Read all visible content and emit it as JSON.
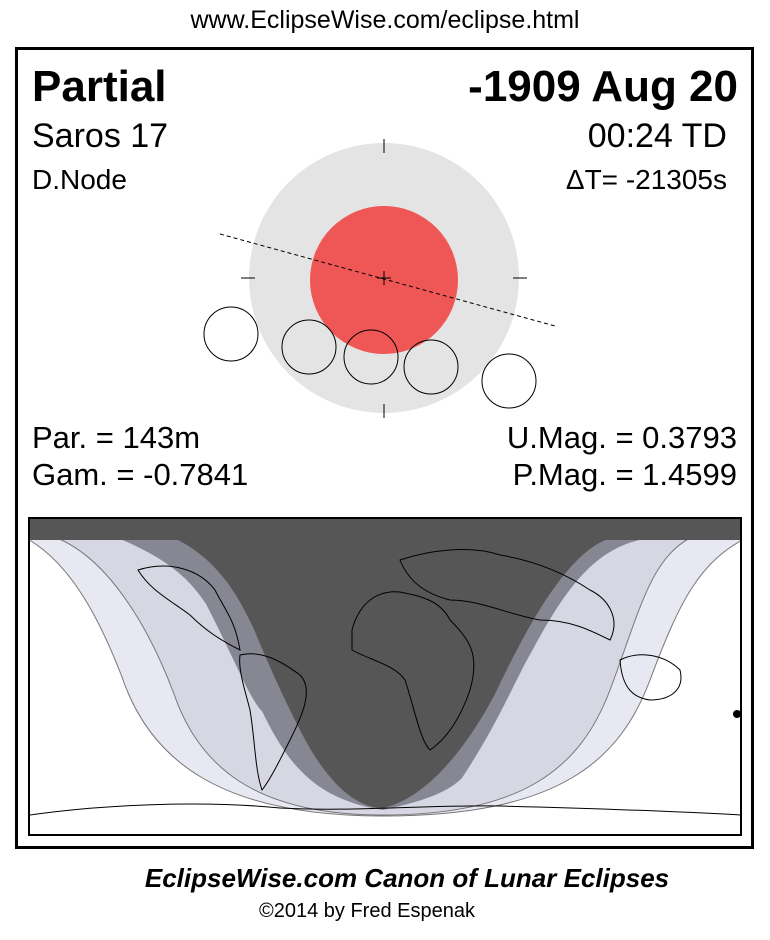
{
  "header_url": "www.EclipseWise.com/eclipse.html",
  "eclipse": {
    "type": "Partial",
    "date": "-1909 Aug 20",
    "saros": "Saros  17",
    "time": "00:24 TD",
    "node": "D.Node",
    "delta_t": "ΔT= -21305s",
    "duration": "Par. = 143m",
    "gamma": "Gam. = -0.7841",
    "umbral_mag": "U.Mag. = 0.3793",
    "penumbral_mag": "P.Mag. = 1.4599"
  },
  "colors": {
    "umbra": "#ef5656",
    "penumbra": "#e4e4e4",
    "map_night": "#565656",
    "map_partial": "#878793",
    "map_penumbral_inner": "#d7d7e4",
    "map_penumbral_outer": "#e8e8f2"
  },
  "footer": {
    "title": "EclipseWise.com Canon of Lunar Eclipses",
    "copyright": "©2014 by Fred Espenak"
  }
}
